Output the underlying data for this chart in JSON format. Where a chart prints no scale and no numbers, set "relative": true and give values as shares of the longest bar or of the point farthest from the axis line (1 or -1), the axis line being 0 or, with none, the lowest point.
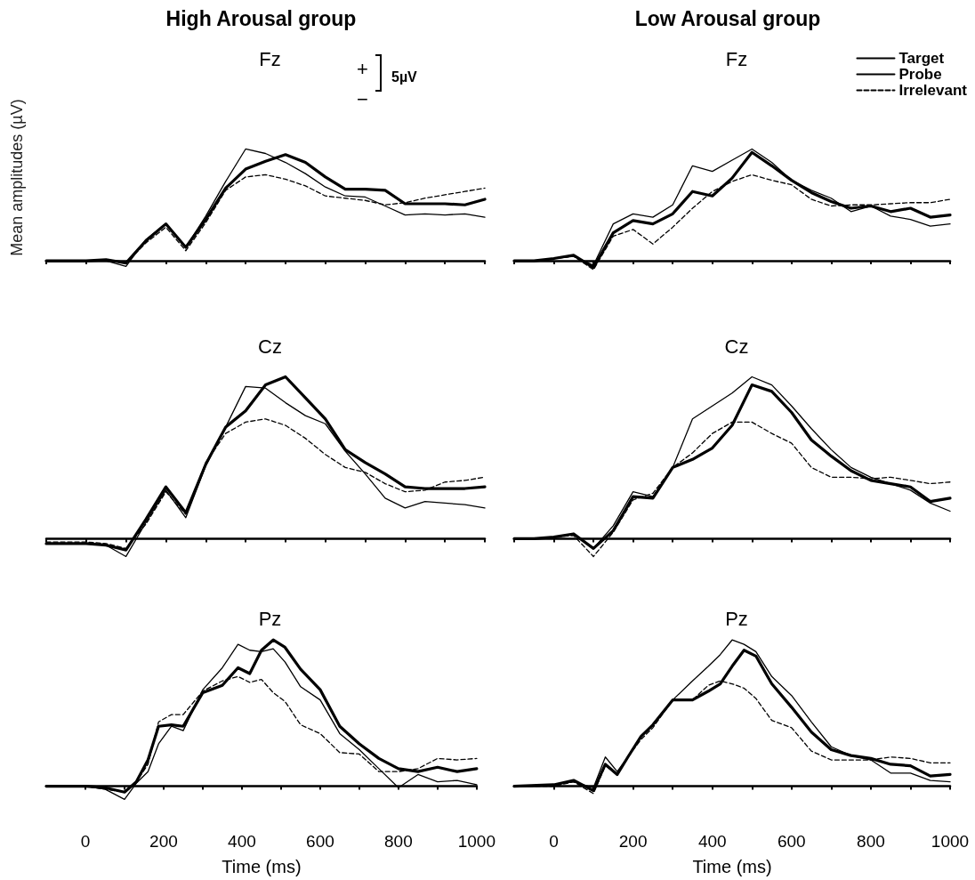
{
  "chart_data": [
    {
      "type": "line",
      "subtitle": "High Arousal group",
      "title": "Fz",
      "ylabel": "Mean amplitudes (µV)",
      "annotations": [
        "+",
        "−",
        "5µV"
      ],
      "relative": true,
      "legend": false,
      "marker": "none",
      "categories": [
        null,
        null,
        null,
        null,
        null,
        null,
        null,
        null,
        null,
        null,
        null,
        null,
        null,
        null,
        null,
        null,
        null,
        null,
        null,
        null,
        null,
        null,
        null
      ],
      "series": [
        {
          "color": "#000000",
          "line_style": "solid",
          "values": [
            0,
            0,
            0,
            0,
            -0.05,
            0.19,
            0.33,
            0.12,
            0.4,
            0.71,
            1,
            0.96,
            0.88,
            0.78,
            0.66,
            0.58,
            0.57,
            0.49,
            0.41,
            0.42,
            0.41,
            0.42,
            0.39
          ]
        },
        {
          "color": "#000000",
          "line_style": "solid",
          "values": [
            0,
            0,
            0,
            0.01,
            -0.02,
            0.18,
            0.33,
            0.12,
            0.37,
            0.65,
            0.82,
            0.89,
            0.95,
            0.88,
            0.75,
            0.64,
            0.64,
            0.63,
            0.51,
            0.51,
            0.51,
            0.5,
            0.55
          ]
        },
        {
          "color": "#000000",
          "line_style": "dashed",
          "values": [
            0,
            0,
            0,
            0,
            -0.02,
            0.16,
            0.3,
            0.09,
            0.34,
            0.63,
            0.75,
            0.77,
            0.73,
            0.67,
            0.58,
            0.56,
            0.54,
            0.5,
            0.52,
            0.56,
            0.59,
            0.62,
            0.65
          ]
        }
      ]
    },
    {
      "type": "line",
      "subtitle": "Low Arousal group",
      "title": "Fz",
      "relative": true,
      "legend": "top right",
      "marker": "none",
      "categories": [
        null,
        null,
        null,
        null,
        null,
        null,
        null,
        null,
        null,
        null,
        null,
        null,
        null,
        null,
        null,
        null,
        null,
        null,
        null,
        null,
        null,
        null,
        null
      ],
      "series": [
        {
          "name": "Target",
          "color": "#000000",
          "line_style": "solid",
          "values": [
            0,
            0,
            0.02,
            0.04,
            -0.04,
            0.33,
            0.42,
            0.39,
            0.5,
            0.85,
            0.8,
            0.9,
            1,
            0.88,
            0.72,
            0.63,
            0.56,
            0.44,
            0.49,
            0.4,
            0.37,
            0.31,
            0.33
          ]
        },
        {
          "name": "Probe",
          "color": "#000000",
          "line_style": "solid",
          "values": [
            0,
            0,
            0.02,
            0.05,
            -0.06,
            0.25,
            0.36,
            0.33,
            0.42,
            0.62,
            0.58,
            0.74,
            0.97,
            0.85,
            0.72,
            0.61,
            0.53,
            0.47,
            0.49,
            0.44,
            0.47,
            0.39,
            0.41
          ]
        },
        {
          "name": "Irrelevant",
          "color": "#000000",
          "line_style": "dashed",
          "values": [
            0,
            0,
            0.02,
            0.04,
            -0.08,
            0.22,
            0.28,
            0.15,
            0.3,
            0.47,
            0.62,
            0.71,
            0.77,
            0.72,
            0.68,
            0.55,
            0.49,
            0.5,
            0.5,
            0.51,
            0.52,
            0.52,
            0.55
          ]
        }
      ]
    },
    {
      "type": "line",
      "title": "Cz",
      "relative": true,
      "legend": false,
      "marker": "none",
      "categories": [
        null,
        null,
        null,
        null,
        null,
        null,
        null,
        null,
        null,
        null,
        null,
        null,
        null,
        null,
        null,
        null,
        null,
        null,
        null,
        null,
        null,
        null,
        null
      ],
      "series": [
        {
          "color": "#000000",
          "line_style": "solid",
          "values": [
            -0.03,
            -0.03,
            -0.03,
            -0.04,
            -0.11,
            0.1,
            0.3,
            0.13,
            0.45,
            0.69,
            0.94,
            0.93,
            0.84,
            0.76,
            0.71,
            0.54,
            0.4,
            0.25,
            0.19,
            0.23,
            0.22,
            0.21,
            0.19
          ]
        },
        {
          "color": "#000000",
          "line_style": "solid",
          "values": [
            -0.03,
            -0.03,
            -0.03,
            -0.04,
            -0.07,
            0.12,
            0.32,
            0.16,
            0.46,
            0.69,
            0.79,
            0.95,
            1,
            0.87,
            0.74,
            0.55,
            0.47,
            0.4,
            0.32,
            0.31,
            0.31,
            0.31,
            0.32
          ]
        },
        {
          "color": "#000000",
          "line_style": "dashed",
          "values": [
            -0.02,
            -0.02,
            -0.02,
            -0.03,
            -0.06,
            0.09,
            0.29,
            0.15,
            0.47,
            0.65,
            0.72,
            0.74,
            0.7,
            0.62,
            0.52,
            0.44,
            0.41,
            0.34,
            0.29,
            0.3,
            0.35,
            0.36,
            0.38
          ]
        }
      ]
    },
    {
      "type": "line",
      "title": "Cz",
      "relative": true,
      "legend": false,
      "marker": "none",
      "categories": [
        null,
        null,
        null,
        null,
        null,
        null,
        null,
        null,
        null,
        null,
        null,
        null,
        null,
        null,
        null,
        null,
        null,
        null,
        null,
        null,
        null,
        null,
        null
      ],
      "series": [
        {
          "color": "#000000",
          "line_style": "solid",
          "values": [
            0,
            0,
            0.01,
            0.03,
            -0.06,
            0.08,
            0.29,
            0.26,
            0.44,
            0.74,
            0.82,
            0.9,
            1,
            0.95,
            0.82,
            0.68,
            0.55,
            0.44,
            0.38,
            0.34,
            0.3,
            0.22,
            0.17
          ]
        },
        {
          "color": "#000000",
          "line_style": "solid",
          "values": [
            0,
            0,
            0.01,
            0.03,
            -0.06,
            0.05,
            0.26,
            0.25,
            0.44,
            0.49,
            0.56,
            0.7,
            0.95,
            0.91,
            0.78,
            0.61,
            0.51,
            0.42,
            0.36,
            0.34,
            0.32,
            0.23,
            0.25
          ]
        },
        {
          "color": "#000000",
          "line_style": "dashed",
          "values": [
            0,
            0,
            0.01,
            0.02,
            -0.11,
            0.04,
            0.24,
            0.28,
            0.44,
            0.53,
            0.65,
            0.72,
            0.72,
            0.65,
            0.59,
            0.44,
            0.38,
            0.38,
            0.37,
            0.38,
            0.36,
            0.34,
            0.35
          ]
        }
      ]
    },
    {
      "type": "line",
      "title": "Pz",
      "xlabel": "Time (ms)",
      "relative": true,
      "legend": false,
      "marker": "none",
      "x": [
        -100,
        0,
        50,
        100,
        130,
        160,
        187,
        220,
        250,
        300,
        350,
        390,
        420,
        450,
        480,
        510,
        550,
        600,
        650,
        700,
        750,
        800,
        850,
        900,
        950,
        1000
      ],
      "xlim": [
        -100,
        1000
      ],
      "xticks": [
        0,
        {
          "value": 100,
          "label": null
        },
        200,
        {
          "value": 300,
          "label": null
        },
        400,
        {
          "value": 500,
          "label": null
        },
        600,
        {
          "value": 700,
          "label": null
        },
        800,
        {
          "value": 900,
          "label": null
        },
        1000
      ],
      "series": [
        {
          "color": "#000000",
          "line_style": "solid",
          "values": [
            0,
            0,
            -0.02,
            -0.09,
            0.02,
            0.1,
            0.29,
            0.41,
            0.38,
            0.66,
            0.81,
            0.97,
            0.93,
            0.92,
            0.94,
            0.85,
            0.68,
            0.59,
            0.36,
            0.25,
            0.12,
            -0.01,
            0.08,
            0.03,
            0.04,
            0.01
          ]
        },
        {
          "color": "#000000",
          "line_style": "solid",
          "values": [
            0,
            0,
            -0.01,
            -0.04,
            0.03,
            0.18,
            0.41,
            0.42,
            0.41,
            0.64,
            0.69,
            0.81,
            0.77,
            0.93,
            1,
            0.95,
            0.8,
            0.66,
            0.41,
            0.29,
            0.19,
            0.12,
            0.1,
            0.13,
            0.1,
            0.12
          ]
        },
        {
          "color": "#000000",
          "line_style": "dashed",
          "values": [
            0,
            0,
            -0.02,
            -0.04,
            0.03,
            0.15,
            0.44,
            0.49,
            0.49,
            0.65,
            0.72,
            0.75,
            0.71,
            0.73,
            0.64,
            0.58,
            0.42,
            0.36,
            0.23,
            0.22,
            0.1,
            0.1,
            0.12,
            0.19,
            0.18,
            0.19
          ]
        }
      ]
    },
    {
      "type": "line",
      "title": "Pz",
      "xlabel": "Time (ms)",
      "relative": true,
      "legend": false,
      "marker": "none",
      "x": [
        -100,
        0,
        50,
        100,
        130,
        160,
        187,
        220,
        250,
        300,
        350,
        390,
        420,
        450,
        480,
        510,
        550,
        600,
        650,
        700,
        750,
        800,
        850,
        900,
        950,
        1000
      ],
      "xlim": [
        -100,
        1000
      ],
      "xticks": [
        0,
        {
          "value": 100,
          "label": null
        },
        200,
        {
          "value": 300,
          "label": null
        },
        400,
        {
          "value": 500,
          "label": null
        },
        600,
        {
          "value": 700,
          "label": null
        },
        800,
        {
          "value": 900,
          "label": null
        },
        1000
      ],
      "series": [
        {
          "color": "#000000",
          "line_style": "solid",
          "values": [
            0,
            0.01,
            0.03,
            -0.01,
            0.2,
            0.1,
            0.2,
            0.34,
            0.42,
            0.59,
            0.72,
            0.82,
            0.9,
            1,
            0.97,
            0.92,
            0.75,
            0.62,
            0.44,
            0.27,
            0.21,
            0.18,
            0.09,
            0.09,
            0.04,
            0.03
          ]
        },
        {
          "color": "#000000",
          "line_style": "solid",
          "values": [
            0,
            0.01,
            0.04,
            -0.03,
            0.15,
            0.08,
            0.2,
            0.34,
            0.42,
            0.59,
            0.59,
            0.65,
            0.7,
            0.82,
            0.93,
            0.89,
            0.7,
            0.54,
            0.37,
            0.25,
            0.21,
            0.19,
            0.15,
            0.14,
            0.07,
            0.08
          ]
        },
        {
          "color": "#000000",
          "line_style": "dashed",
          "values": [
            0,
            0,
            0.03,
            -0.05,
            0.14,
            0.08,
            0.2,
            0.32,
            0.4,
            0.59,
            0.59,
            0.69,
            0.72,
            0.7,
            0.67,
            0.6,
            0.45,
            0.4,
            0.24,
            0.18,
            0.18,
            0.18,
            0.2,
            0.19,
            0.16,
            0.16
          ]
        }
      ]
    }
  ]
}
